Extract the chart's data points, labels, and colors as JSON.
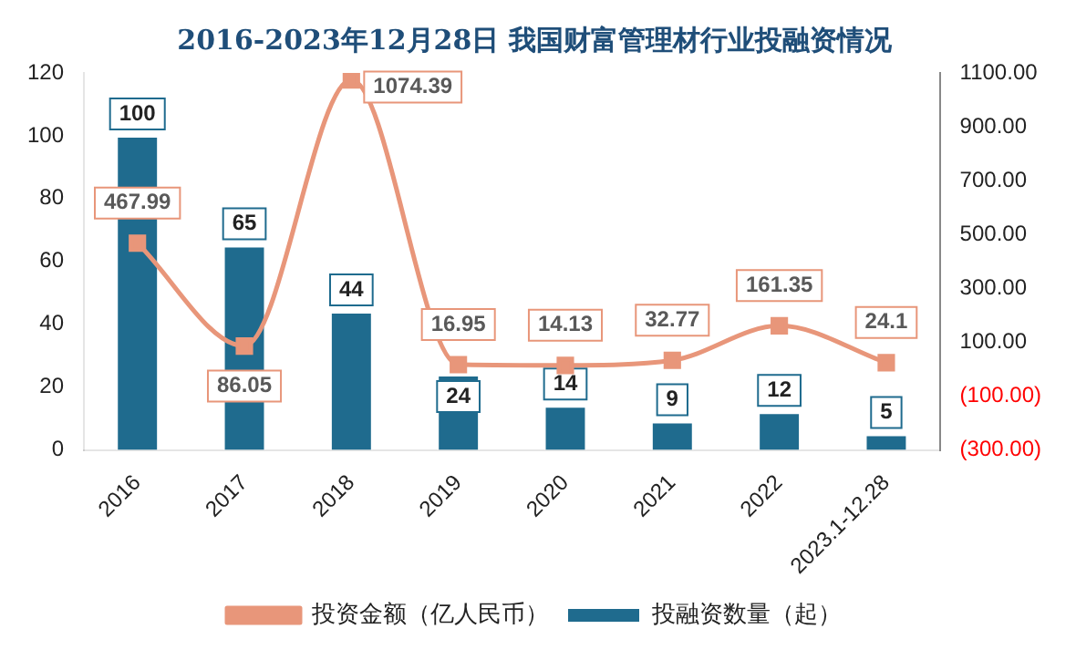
{
  "chart_data": {
    "type": "bar",
    "title": "2016-2023年12月28日 我国财富管理材行业投融资情况",
    "categories": [
      "2016",
      "2017",
      "2018",
      "2019",
      "2020",
      "2021",
      "2022",
      "2023.1-12.28"
    ],
    "series": [
      {
        "name": "投融资数量（起）",
        "color": "#1f6b8e",
        "values": [
          100,
          65,
          44,
          24,
          14,
          9,
          12,
          5
        ]
      },
      {
        "name": "投资金额（亿人民币）",
        "type": "line",
        "axis": "y2",
        "color": "#e8967a",
        "marker": "square",
        "values": [
          467.99,
          86.05,
          1074.39,
          16.95,
          14.13,
          32.77,
          161.35,
          24.1
        ]
      }
    ],
    "ylim": [
      0,
      120
    ],
    "yticks": [
      0,
      20,
      40,
      60,
      80,
      100,
      120
    ],
    "y2lim": [
      -300,
      1100
    ],
    "y2ticks": [
      {
        "value": -300,
        "label": "(300.00)"
      },
      {
        "value": -100,
        "label": "(100.00)"
      },
      {
        "value": 100,
        "label": "100.00"
      },
      {
        "value": 300,
        "label": "300.00"
      },
      {
        "value": 500,
        "label": "500.00"
      },
      {
        "value": 700,
        "label": "700.00"
      },
      {
        "value": 900,
        "label": "900.00"
      },
      {
        "value": 1100,
        "label": "1100.00"
      }
    ],
    "data_labels": true,
    "legend": "bottom",
    "grid": false
  }
}
